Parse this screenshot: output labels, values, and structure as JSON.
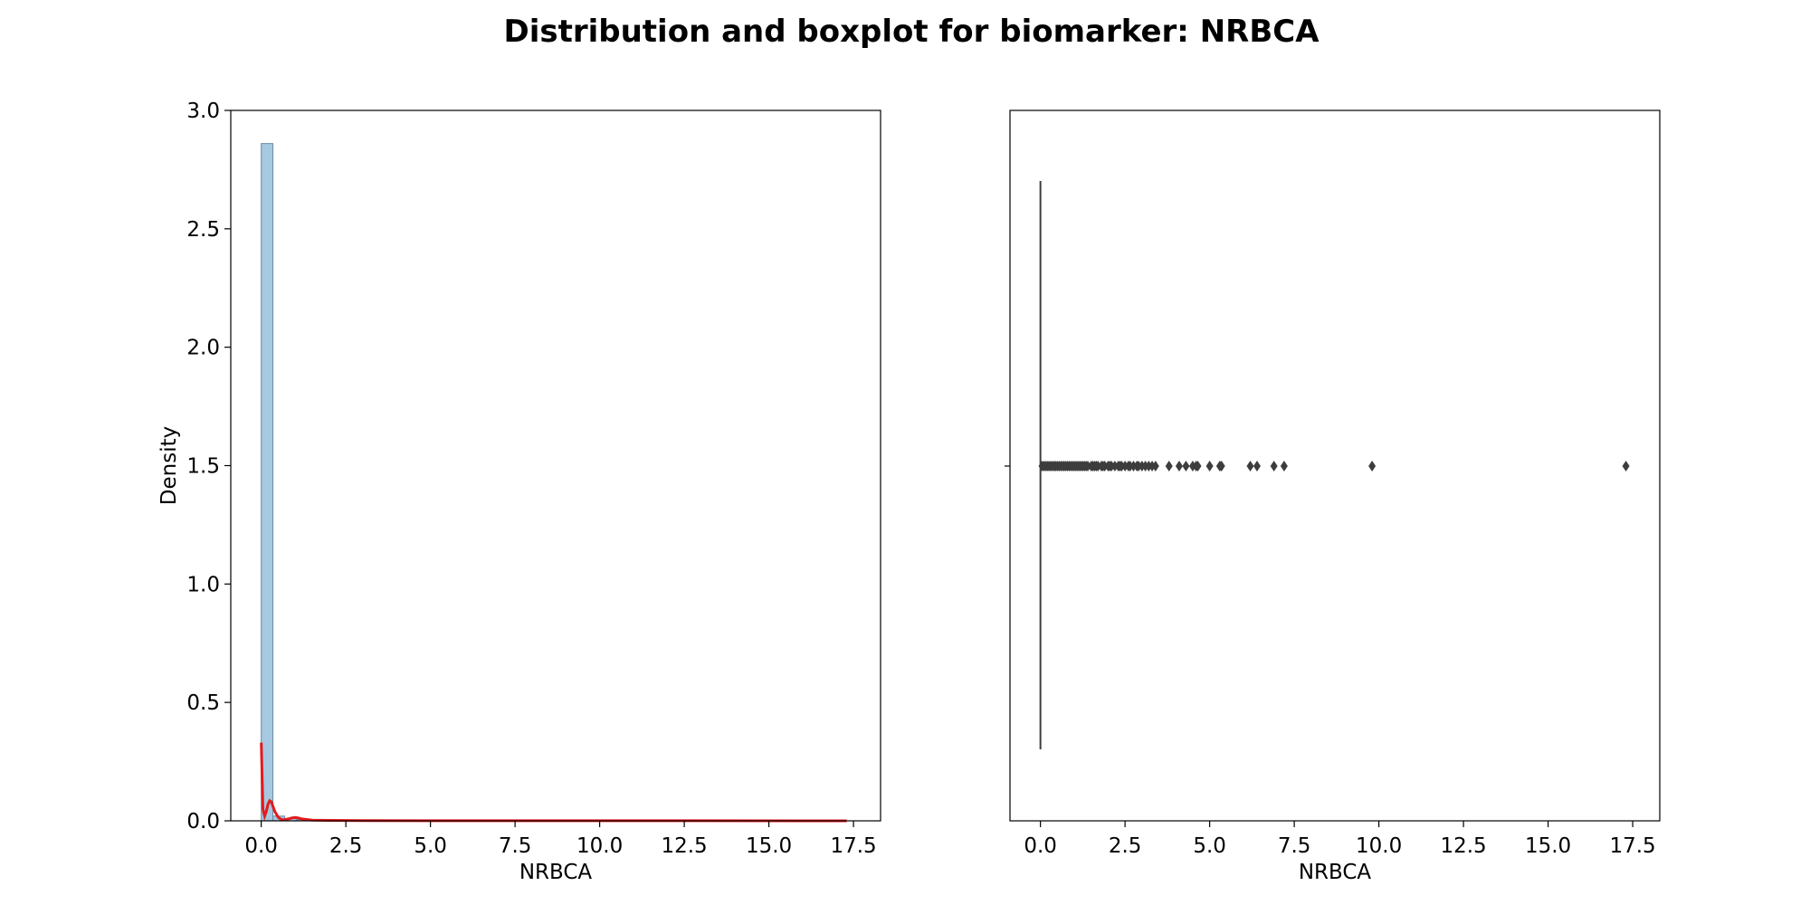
{
  "title": "Distribution and boxplot for biomarker: NRBCA",
  "colors": {
    "hist_fill": "#a6c8e0",
    "hist_edge": "#6b8aa3",
    "kde_line": "#e31a1c",
    "box_line": "#3d3d3d",
    "outlier": "#3d3d3d",
    "axes": "#000000"
  },
  "chart_data": [
    {
      "type": "histogram",
      "xlabel": "NRBCA",
      "ylabel": "Density",
      "xlim": [
        -0.9,
        18.3
      ],
      "ylim": [
        0,
        3.0
      ],
      "xticks": [
        0,
        2.5,
        5,
        7.5,
        10,
        12.5,
        15,
        17.5
      ],
      "xtick_labels": [
        "0.0",
        "2.5",
        "5.0",
        "7.5",
        "10.0",
        "12.5",
        "15.0",
        "17.5"
      ],
      "yticks": [
        0,
        0.5,
        1.0,
        1.5,
        2.0,
        2.5,
        3.0
      ],
      "ytick_labels": [
        "0.0",
        "0.5",
        "1.0",
        "1.5",
        "2.0",
        "2.5",
        "3.0"
      ],
      "bins": [
        {
          "x0": 0.0,
          "x1": 0.345,
          "density": 2.86
        },
        {
          "x0": 0.345,
          "x1": 0.69,
          "density": 0.02
        },
        {
          "x0": 0.69,
          "x1": 1.035,
          "density": 0.01
        },
        {
          "x0": 1.035,
          "x1": 1.38,
          "density": 0.005
        }
      ],
      "kde": {
        "name": "KDE",
        "x": [
          0.0,
          0.05,
          0.1,
          0.15,
          0.2,
          0.25,
          0.3,
          0.35,
          0.4,
          0.5,
          0.6,
          0.7,
          0.8,
          0.9,
          1.0,
          1.1,
          1.2,
          1.5,
          2.0,
          3.0,
          5.0,
          10.0,
          17.3
        ],
        "y": [
          0.33,
          0.05,
          0.02,
          0.04,
          0.07,
          0.085,
          0.08,
          0.06,
          0.04,
          0.015,
          0.005,
          0.005,
          0.008,
          0.012,
          0.014,
          0.012,
          0.008,
          0.003,
          0.002,
          0.001,
          0.0005,
          0.0002,
          0.0
        ]
      }
    },
    {
      "type": "boxplot",
      "xlabel": "NRBCA",
      "xlim": [
        -0.9,
        18.3
      ],
      "xticks": [
        0,
        2.5,
        5,
        7.5,
        10,
        12.5,
        15,
        17.5
      ],
      "xtick_labels": [
        "0.0",
        "2.5",
        "5.0",
        "7.5",
        "10.0",
        "12.5",
        "15.0",
        "17.5"
      ],
      "box": {
        "q1": 0.0,
        "median": 0.0,
        "q3": 0.0,
        "whisker_low": 0.0,
        "whisker_high": 0.0
      },
      "outliers": [
        0.05,
        0.1,
        0.15,
        0.2,
        0.25,
        0.3,
        0.35,
        0.4,
        0.45,
        0.5,
        0.55,
        0.6,
        0.65,
        0.7,
        0.75,
        0.8,
        0.85,
        0.9,
        0.95,
        1.0,
        1.05,
        1.1,
        1.15,
        1.2,
        1.25,
        1.3,
        1.35,
        1.4,
        1.5,
        1.55,
        1.6,
        1.65,
        1.7,
        1.8,
        1.85,
        1.9,
        2.0,
        2.05,
        2.1,
        2.2,
        2.3,
        2.35,
        2.4,
        2.5,
        2.6,
        2.65,
        2.75,
        2.85,
        2.9,
        3.0,
        3.1,
        3.2,
        3.3,
        3.4,
        3.8,
        4.1,
        4.3,
        4.5,
        4.6,
        4.65,
        5.0,
        5.3,
        5.35,
        6.2,
        6.4,
        6.9,
        7.2,
        9.8,
        17.3
      ]
    }
  ]
}
